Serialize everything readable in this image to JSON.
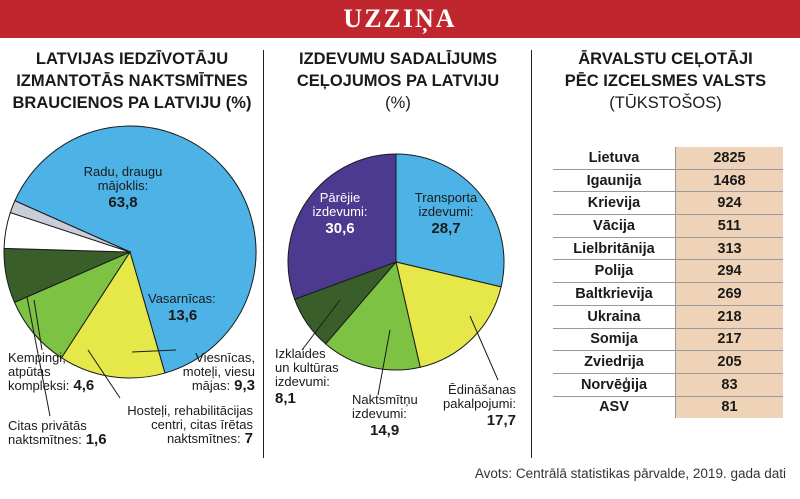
{
  "banner": {
    "title": "UZZIŅA"
  },
  "panel1": {
    "title_lines": [
      "LATVIJAS IEDZĪVOTĀJU",
      "IZMANTOTĀS NAKTSMĪTNES",
      "BRAUCIENOS PA LATVIJU (%)"
    ]
  },
  "panel2": {
    "title_lines": [
      "IZDEVUMU SADALĪJUMS",
      "CEĻOJUMOS PA LATVIJU",
      "(%)"
    ]
  },
  "panel3": {
    "title_lines": [
      "ĀRVALSTU CEĻOTĀJI",
      "PĒC IZCELSMES VALSTS",
      "(TŪKSTOŠOS)"
    ]
  },
  "source": "Avots: Centrālā statistikas pārvalde, 2019. gada dati",
  "colors": {
    "banner": "#c0262d",
    "blue": "#4db3e6",
    "yellow": "#e6e84a",
    "green": "#7dc242",
    "dark_green": "#3a5e2a",
    "light_gray": "#c8cdd8",
    "white": "#ffffff",
    "purple": "#4b3a8f",
    "table_value_bg": "#efd3b8"
  },
  "chart_data": [
    {
      "type": "pie",
      "slices": [
        {
          "label_lines": [
            "Radu, draugu",
            "mājoklis:"
          ],
          "value": 63.8,
          "value_text": "63,8",
          "color": "#4db3e6"
        },
        {
          "label_lines": [
            "Vasarnīcas:"
          ],
          "value": 13.6,
          "value_text": "13,6",
          "color": "#e6e84a"
        },
        {
          "label_lines": [
            "Viesnīcas,",
            "moteļi, viesu",
            "mājas:"
          ],
          "value": 9.3,
          "value_text": "9,3",
          "color": "#7dc242"
        },
        {
          "label_lines": [
            "Hosteļi, rehabilitācijas",
            "centri, citas īrētas",
            "naktsmītnes:"
          ],
          "value": 7,
          "value_text": "7",
          "color": "#3a5e2a"
        },
        {
          "label_lines": [
            "Kempingi,",
            "atpūtas",
            "kompleksi:"
          ],
          "value": 4.6,
          "value_text": "4,6",
          "color": "#ffffff"
        },
        {
          "label_lines": [
            "Citas privātās",
            "naktsmītnes:"
          ],
          "value": 1.6,
          "value_text": "1,6",
          "color": "#c8cdd8"
        }
      ]
    },
    {
      "type": "pie",
      "slices": [
        {
          "label_lines": [
            "Transporta",
            "izdevumi:"
          ],
          "value": 28.7,
          "value_text": "28,7",
          "color": "#4db3e6"
        },
        {
          "label_lines": [
            "Ēdināšanas",
            "pakalpojumi:"
          ],
          "value": 17.7,
          "value_text": "17,7",
          "color": "#e6e84a"
        },
        {
          "label_lines": [
            "Naktsmītņu",
            "izdevumi:"
          ],
          "value": 14.9,
          "value_text": "14,9",
          "color": "#7dc242"
        },
        {
          "label_lines": [
            "Izklaides",
            "un kultūras",
            "izdevumi:"
          ],
          "value": 8.1,
          "value_text": "8,1",
          "color": "#3a5e2a"
        },
        {
          "label_lines": [
            "Pārējie",
            "izdevumi:"
          ],
          "value": 30.6,
          "value_text": "30,6",
          "color": "#4b3a8f"
        }
      ]
    },
    {
      "type": "table",
      "rows": [
        {
          "country": "Lietuva",
          "value": 2825
        },
        {
          "country": "Igaunija",
          "value": 1468
        },
        {
          "country": "Krievija",
          "value": 924
        },
        {
          "country": "Vācija",
          "value": 511
        },
        {
          "country": "Lielbritānija",
          "value": 313
        },
        {
          "country": "Polija",
          "value": 294
        },
        {
          "country": "Baltkrievija",
          "value": 269
        },
        {
          "country": "Ukraina",
          "value": 218
        },
        {
          "country": "Somija",
          "value": 217
        },
        {
          "country": "Zviedrija",
          "value": 205
        },
        {
          "country": "Norvēģija",
          "value": 83
        },
        {
          "country": "ASV",
          "value": 81
        }
      ]
    }
  ]
}
